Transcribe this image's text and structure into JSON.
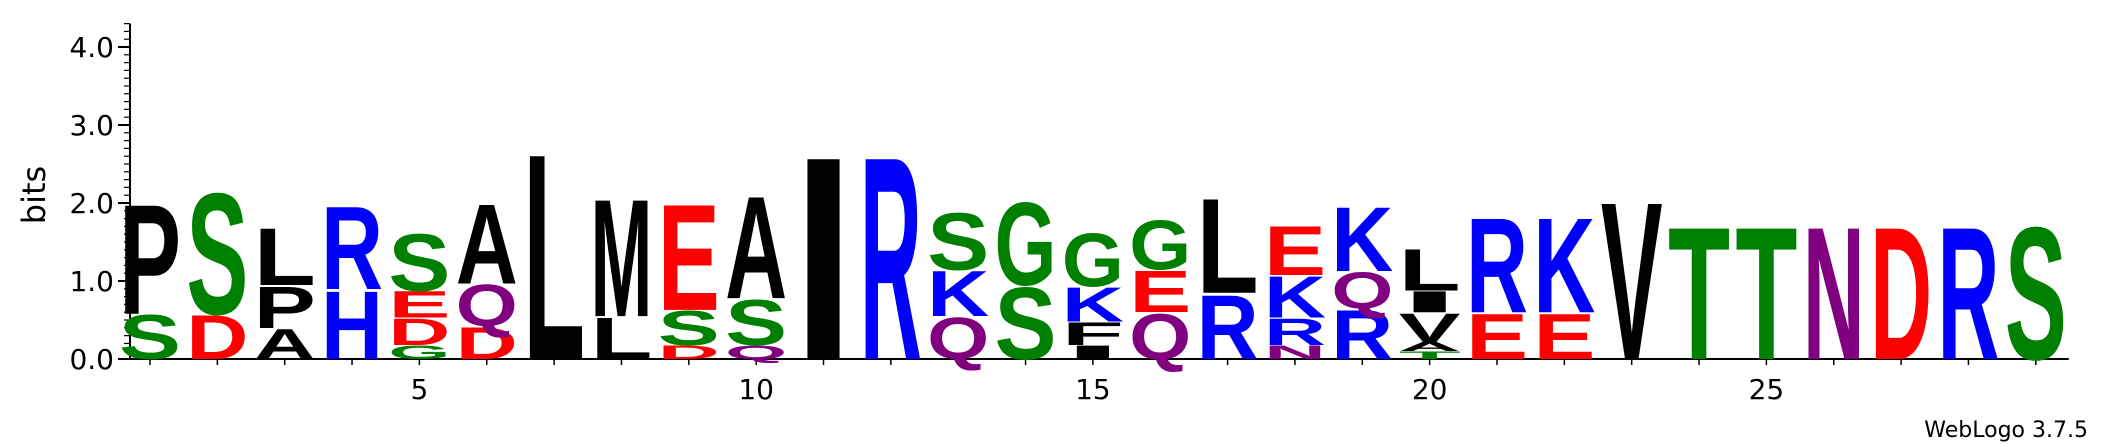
{
  "chart_data": {
    "type": "sequence-logo",
    "ylabel": "bits",
    "ylim": [
      0,
      4.3
    ],
    "y_ticks": [
      {
        "value": 0,
        "label": "0.0"
      },
      {
        "value": 1,
        "label": "1.0"
      },
      {
        "value": 2,
        "label": "2.0"
      },
      {
        "value": 3,
        "label": "3.0"
      },
      {
        "value": 4,
        "label": "4.0"
      }
    ],
    "x_range": [
      1,
      29
    ],
    "x_ticks": [
      {
        "value": 5,
        "label": "5"
      },
      {
        "value": 10,
        "label": "10"
      },
      {
        "value": 15,
        "label": "15"
      },
      {
        "value": 20,
        "label": "20"
      },
      {
        "value": 25,
        "label": "25"
      }
    ],
    "colors": {
      "P": "#000000",
      "L": "#000000",
      "A": "#000000",
      "M": "#000000",
      "I": "#000000",
      "F": "#000000",
      "V": "#000000",
      "S": "#008000",
      "G": "#008000",
      "T": "#008000",
      "R": "#0000ff",
      "H": "#0000ff",
      "K": "#0000ff",
      "D": "#ff0000",
      "E": "#ff0000",
      "Q": "#800080",
      "N": "#800080"
    },
    "positions": [
      {
        "pos": 1,
        "letters": [
          {
            "letter": "S",
            "bits": 0.58
          },
          {
            "letter": "P",
            "bits": 1.45
          }
        ]
      },
      {
        "pos": 2,
        "letters": [
          {
            "letter": "D",
            "bits": 0.58
          },
          {
            "letter": "S",
            "bits": 1.6
          }
        ]
      },
      {
        "pos": 3,
        "letters": [
          {
            "letter": "A",
            "bits": 0.4
          },
          {
            "letter": "P",
            "bits": 0.55
          },
          {
            "letter": "L",
            "bits": 0.75
          }
        ]
      },
      {
        "pos": 4,
        "letters": [
          {
            "letter": "H",
            "bits": 0.9
          },
          {
            "letter": "R",
            "bits": 1.1
          }
        ]
      },
      {
        "pos": 5,
        "letters": [
          {
            "letter": "G",
            "bits": 0.18
          },
          {
            "letter": "D",
            "bits": 0.35
          },
          {
            "letter": "E",
            "bits": 0.35
          },
          {
            "letter": "S",
            "bits": 0.75
          }
        ]
      },
      {
        "pos": 6,
        "letters": [
          {
            "letter": "D",
            "bits": 0.42
          },
          {
            "letter": "Q",
            "bits": 0.55
          },
          {
            "letter": "A",
            "bits": 1.05
          }
        ]
      },
      {
        "pos": 7,
        "letters": [
          {
            "letter": "L",
            "bits": 2.72
          }
        ]
      },
      {
        "pos": 8,
        "letters": [
          {
            "letter": "L",
            "bits": 0.55
          },
          {
            "letter": "M",
            "bits": 1.55
          }
        ]
      },
      {
        "pos": 9,
        "letters": [
          {
            "letter": "D",
            "bits": 0.18
          },
          {
            "letter": "S",
            "bits": 0.45
          },
          {
            "letter": "E",
            "bits": 1.4
          }
        ]
      },
      {
        "pos": 10,
        "letters": [
          {
            "letter": "Q",
            "bits": 0.18
          },
          {
            "letter": "S",
            "bits": 0.6
          },
          {
            "letter": "A",
            "bits": 1.35
          }
        ]
      },
      {
        "pos": 11,
        "letters": [
          {
            "letter": "I",
            "bits": 2.68
          }
        ]
      },
      {
        "pos": 12,
        "letters": [
          {
            "letter": "R",
            "bits": 2.68
          }
        ]
      },
      {
        "pos": 13,
        "letters": [
          {
            "letter": "Q",
            "bits": 0.55
          },
          {
            "letter": "K",
            "bits": 0.6
          },
          {
            "letter": "S",
            "bits": 0.75
          }
        ]
      },
      {
        "pos": 14,
        "letters": [
          {
            "letter": "S",
            "bits": 0.95
          },
          {
            "letter": "G",
            "bits": 1.1
          }
        ]
      },
      {
        "pos": 15,
        "letters": [
          {
            "letter": "I",
            "bits": 0.18
          },
          {
            "letter": "F",
            "bits": 0.3
          },
          {
            "letter": "K",
            "bits": 0.45
          },
          {
            "letter": "G",
            "bits": 0.7
          }
        ]
      },
      {
        "pos": 16,
        "letters": [
          {
            "letter": "Q",
            "bits": 0.6
          },
          {
            "letter": "E",
            "bits": 0.55
          },
          {
            "letter": "G",
            "bits": 0.65
          }
        ]
      },
      {
        "pos": 17,
        "letters": [
          {
            "letter": "R",
            "bits": 0.85
          },
          {
            "letter": "L",
            "bits": 1.25
          }
        ]
      },
      {
        "pos": 18,
        "letters": [
          {
            "letter": "N",
            "bits": 0.18
          },
          {
            "letter": "R",
            "bits": 0.35
          },
          {
            "letter": "K",
            "bits": 0.55
          },
          {
            "letter": "E",
            "bits": 0.65
          }
        ]
      },
      {
        "pos": 19,
        "letters": [
          {
            "letter": "R",
            "bits": 0.65
          },
          {
            "letter": "Q",
            "bits": 0.48
          },
          {
            "letter": "K",
            "bits": 0.85
          }
        ]
      },
      {
        "pos": 20,
        "letters": [
          {
            "letter": "T",
            "bits": 0.1
          },
          {
            "letter": "A",
            "bits": 0.12
          },
          {
            "letter": "V",
            "bits": 0.38
          },
          {
            "letter": "I",
            "bits": 0.28
          },
          {
            "letter": "L",
            "bits": 0.55
          }
        ]
      },
      {
        "pos": 21,
        "letters": [
          {
            "letter": "E",
            "bits": 0.6
          },
          {
            "letter": "R",
            "bits": 1.25
          }
        ]
      },
      {
        "pos": 22,
        "letters": [
          {
            "letter": "E",
            "bits": 0.6
          },
          {
            "letter": "K",
            "bits": 1.25
          }
        ]
      },
      {
        "pos": 23,
        "letters": [
          {
            "letter": "V",
            "bits": 2.08
          }
        ]
      },
      {
        "pos": 24,
        "letters": [
          {
            "letter": "T",
            "bits": 1.75
          }
        ]
      },
      {
        "pos": 25,
        "letters": [
          {
            "letter": "T",
            "bits": 1.75
          }
        ]
      },
      {
        "pos": 26,
        "letters": [
          {
            "letter": "N",
            "bits": 1.75
          }
        ]
      },
      {
        "pos": 27,
        "letters": [
          {
            "letter": "D",
            "bits": 1.75
          }
        ]
      },
      {
        "pos": 28,
        "letters": [
          {
            "letter": "R",
            "bits": 1.75
          }
        ]
      },
      {
        "pos": 29,
        "letters": [
          {
            "letter": "S",
            "bits": 1.75
          }
        ]
      }
    ],
    "credit": "WebLogo 3.7.5"
  }
}
